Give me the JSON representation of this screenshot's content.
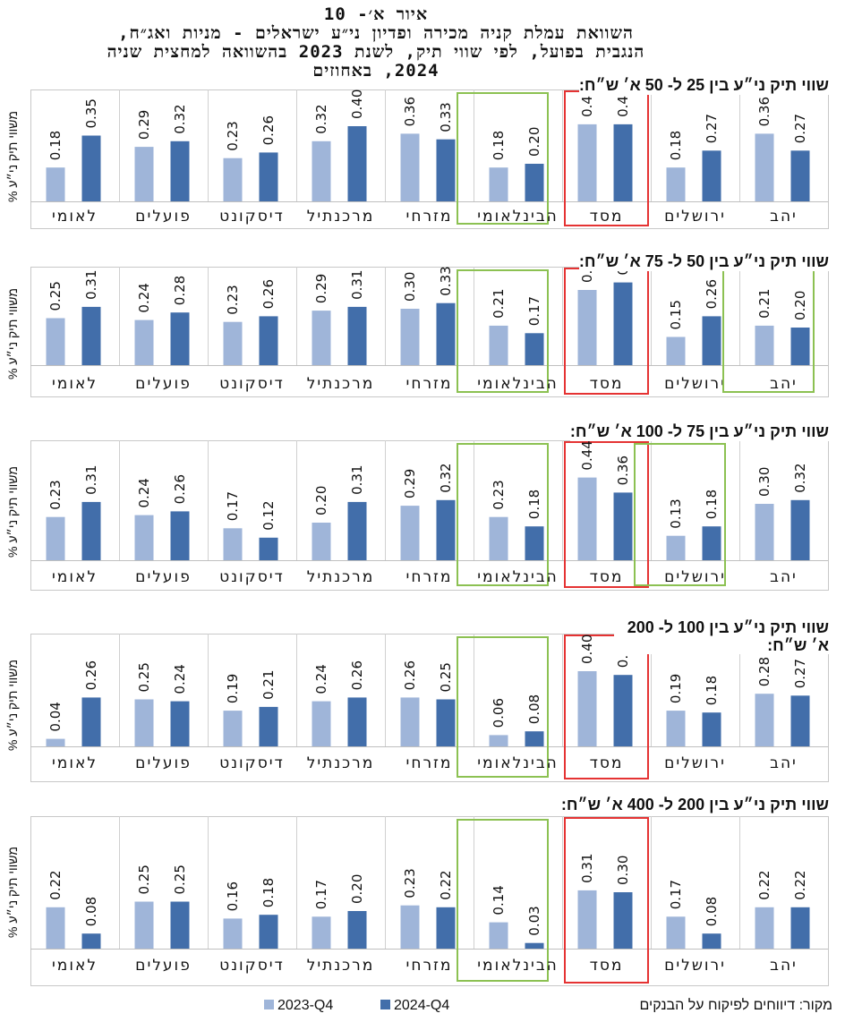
{
  "header": {
    "figure_label": "איור א׳- 10",
    "title_lines": [
      "השוואת עמלת קניה מכירה ופדיון ני״ע ישראלים - מניות ואג״ח,",
      "הנגבית בפועל, לפי שווי תיק, לשנת 2023 בהשוואה למחצית שניה",
      "2024, באחוזים"
    ]
  },
  "y_axis_label": "% משווי תיק ני״ע",
  "legend": [
    {
      "name": "2023-Q4",
      "color": "#9fb5d9"
    },
    {
      "name": "2024-Q4",
      "color": "#426eaa"
    }
  ],
  "source": "מקור: דיווחים לפיקוח על הבנקים",
  "chart_data": [
    {
      "type": "bar",
      "title": "שווי תיק ני״ע בין 25 ל- 50 א׳ ש״ח:",
      "categories": [
        "לאומי",
        "פועלים",
        "דיסקונט",
        "מרכנתיל",
        "מזרחי",
        "הבינלאומי",
        "מסד",
        "ירושלים",
        "יהב"
      ],
      "series": [
        {
          "name": "2023-Q4",
          "values": [
            0.18,
            0.29,
            0.23,
            0.32,
            0.36,
            0.18,
            0.41,
            0.18,
            0.36
          ]
        },
        {
          "name": "2024-Q4",
          "values": [
            0.35,
            0.32,
            0.26,
            0.4,
            0.33,
            0.2,
            0.41,
            0.27,
            0.27
          ]
        }
      ],
      "highlight_red": [
        "מסד"
      ],
      "highlight_green": [
        "הבינלאומי"
      ]
    },
    {
      "type": "bar",
      "title": "שווי תיק ני״ע בין 50 ל- 75 א׳ ש״ח:",
      "categories": [
        "לאומי",
        "פועלים",
        "דיסקונט",
        "מרכנתיל",
        "מזרחי",
        "הבינלאומי",
        "מסד",
        "ירושלים",
        "יהב"
      ],
      "series": [
        {
          "name": "2023-Q4",
          "values": [
            0.25,
            0.24,
            0.23,
            0.29,
            0.3,
            0.21,
            0.4,
            0.15,
            0.21
          ]
        },
        {
          "name": "2024-Q4",
          "values": [
            0.31,
            0.28,
            0.26,
            0.31,
            0.33,
            0.17,
            0.44,
            0.26,
            0.2
          ]
        }
      ],
      "highlight_red": [
        "מסד"
      ],
      "highlight_green": [
        "הבינלאומי",
        "יהב"
      ]
    },
    {
      "type": "bar",
      "title": "שווי תיק ני״ע בין 75 ל- 100 א׳ ש״ח:",
      "categories": [
        "לאומי",
        "פועלים",
        "דיסקונט",
        "מרכנתיל",
        "מזרחי",
        "הבינלאומי",
        "מסד",
        "ירושלים",
        "יהב"
      ],
      "series": [
        {
          "name": "2023-Q4",
          "values": [
            0.23,
            0.24,
            0.17,
            0.2,
            0.29,
            0.23,
            0.44,
            0.13,
            0.3
          ]
        },
        {
          "name": "2024-Q4",
          "values": [
            0.31,
            0.26,
            0.12,
            0.31,
            0.32,
            0.18,
            0.36,
            0.18,
            0.32
          ]
        }
      ],
      "highlight_red": [
        "מסד"
      ],
      "highlight_green": [
        "הבינלאומי",
        "ירושלים"
      ]
    },
    {
      "type": "bar",
      "title": "שווי תיק ני״ע בין 100 ל- 200 א׳ ש״ח:",
      "categories": [
        "לאומי",
        "פועלים",
        "דיסקונט",
        "מרכנתיל",
        "מזרחי",
        "הבינלאומי",
        "מסד",
        "ירושלים",
        "יהב"
      ],
      "series": [
        {
          "name": "2023-Q4",
          "values": [
            0.04,
            0.25,
            0.19,
            0.24,
            0.26,
            0.06,
            0.4,
            0.19,
            0.28
          ]
        },
        {
          "name": "2024-Q4",
          "values": [
            0.26,
            0.24,
            0.21,
            0.26,
            0.25,
            0.08,
            0.38,
            0.18,
            0.27
          ]
        }
      ],
      "highlight_red": [
        "מסד"
      ],
      "highlight_green": [
        "הבינלאומי"
      ]
    },
    {
      "type": "bar",
      "title": "שווי תיק ני״ע בין 200 ל- 400 א׳ ש״ח:",
      "categories": [
        "לאומי",
        "פועלים",
        "דיסקונט",
        "מרכנתיל",
        "מזרחי",
        "הבינלאומי",
        "מסד",
        "ירושלים",
        "יהב"
      ],
      "series": [
        {
          "name": "2023-Q4",
          "values": [
            0.22,
            0.25,
            0.16,
            0.17,
            0.23,
            0.14,
            0.31,
            0.17,
            0.22
          ]
        },
        {
          "name": "2024-Q4",
          "values": [
            0.08,
            0.25,
            0.18,
            0.2,
            0.22,
            0.03,
            0.3,
            0.08,
            0.22
          ]
        }
      ],
      "highlight_red": [
        "מסד"
      ],
      "highlight_green": [
        "הבינלאומי"
      ]
    }
  ]
}
